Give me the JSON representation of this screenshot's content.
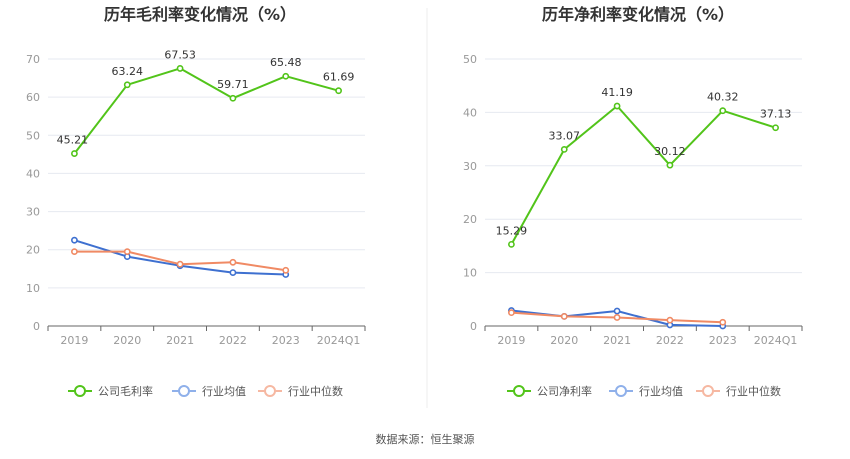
{
  "source_text": "数据来源：恒生聚源",
  "colors": {
    "company": "#52c41a",
    "industry_avg": "#3e70d0",
    "industry_median": "#f08a64",
    "legend_avg": "#8fb0ea",
    "legend_median": "#f6b8a2",
    "grid": "#e6e9f0",
    "axis": "#666666"
  },
  "chart_data": [
    {
      "type": "line",
      "title": "历年毛利率变化情况（%）",
      "categories": [
        "2019",
        "2020",
        "2021",
        "2022",
        "2023",
        "2024Q1"
      ],
      "ylim": [
        0,
        70
      ],
      "yticks": [
        0,
        10,
        20,
        30,
        40,
        50,
        60,
        70
      ],
      "grid": true,
      "legend_position": "bottom",
      "series": [
        {
          "name": "公司毛利率",
          "values": [
            45.21,
            63.24,
            67.53,
            59.71,
            65.48,
            61.69
          ],
          "labels": [
            "45.21",
            "63.24",
            "67.53",
            "59.71",
            "65.48",
            "61.69"
          ],
          "color": "#52c41a"
        },
        {
          "name": "行业均值",
          "values": [
            22.5,
            18.2,
            15.8,
            14.0,
            13.5,
            null
          ],
          "color": "#3e70d0"
        },
        {
          "name": "行业中位数",
          "values": [
            19.5,
            19.5,
            16.2,
            16.7,
            14.6,
            null
          ],
          "color": "#f08a64"
        }
      ]
    },
    {
      "type": "line",
      "title": "历年净利率变化情况（%）",
      "categories": [
        "2019",
        "2020",
        "2021",
        "2022",
        "2023",
        "2024Q1"
      ],
      "ylim": [
        0,
        50
      ],
      "yticks": [
        0,
        10,
        20,
        30,
        40,
        50
      ],
      "grid": true,
      "legend_position": "bottom",
      "series": [
        {
          "name": "公司净利率",
          "values": [
            15.29,
            33.07,
            41.19,
            30.12,
            40.32,
            37.13
          ],
          "labels": [
            "15.29",
            "33.07",
            "41.19",
            "30.12",
            "40.32",
            "37.13"
          ],
          "color": "#52c41a"
        },
        {
          "name": "行业均值",
          "values": [
            2.9,
            1.8,
            2.8,
            0.2,
            0.0,
            null
          ],
          "color": "#3e70d0"
        },
        {
          "name": "行业中位数",
          "values": [
            2.5,
            1.8,
            1.6,
            1.1,
            0.7,
            null
          ],
          "color": "#f08a64"
        }
      ]
    }
  ]
}
